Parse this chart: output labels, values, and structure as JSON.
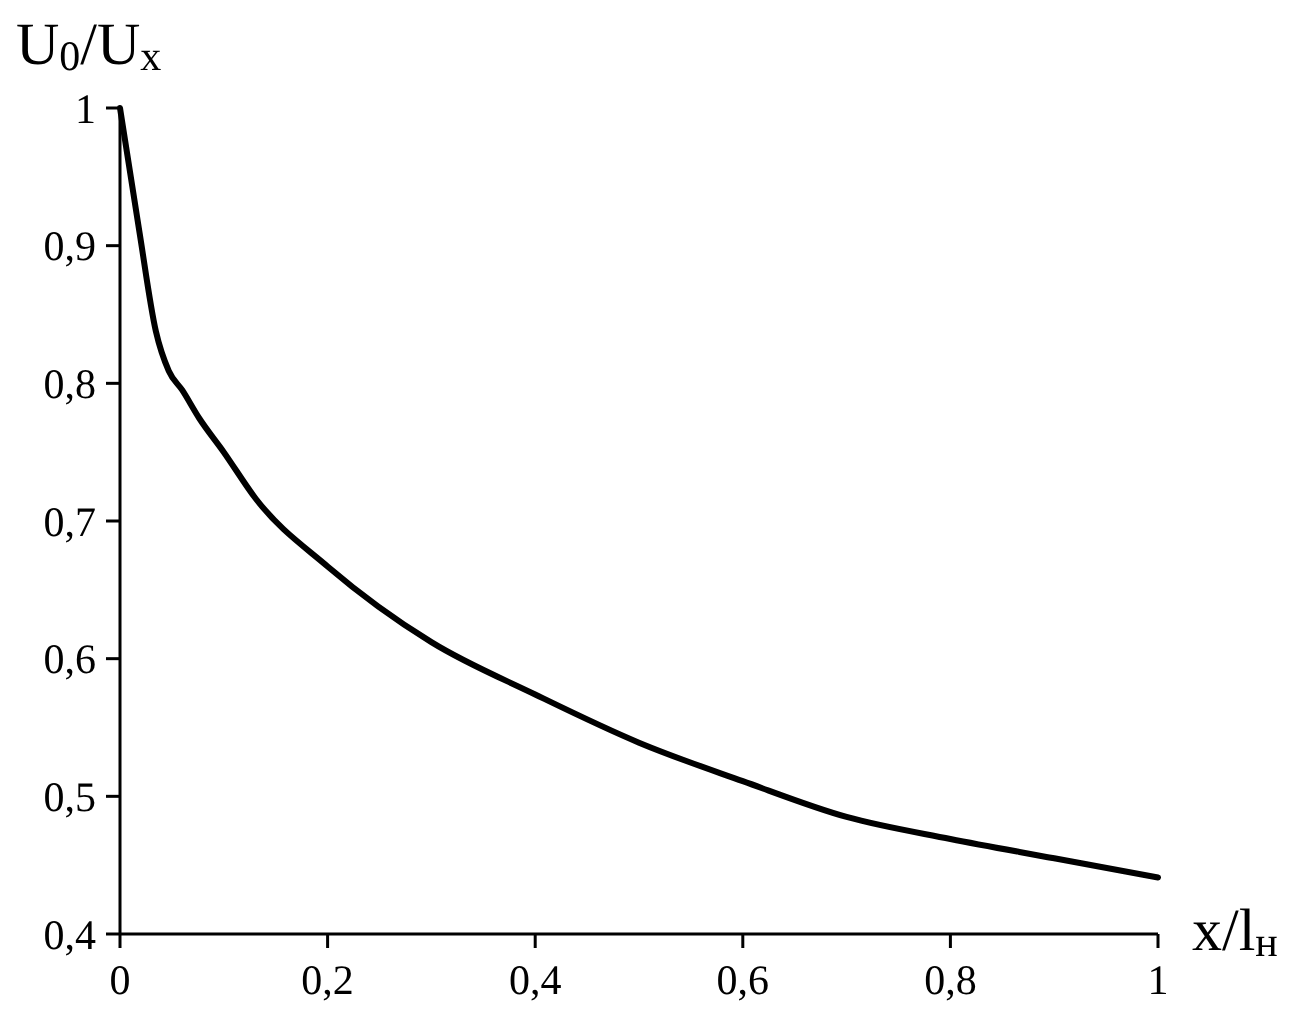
{
  "chart_data": {
    "type": "line",
    "ylabel": "U$_{0}$/U$_{x}$",
    "xlabel": "x/l$_{н}$",
    "x": [
      0,
      0.0185,
      0.0345,
      0.047,
      0.06,
      0.076,
      0.1,
      0.131,
      0.2,
      0.3,
      0.4,
      0.5,
      0.6,
      0.7,
      0.8,
      0.9,
      1
    ],
    "series": [
      {
        "color": "#000000",
        "values": [
          1,
          0.911,
          0.838,
          0.809,
          0.795,
          0.775,
          0.75,
          0.716,
          0.667,
          0.612,
          0.574,
          0.539,
          0.511,
          0.485,
          0.469,
          0.455,
          0.441
        ]
      }
    ],
    "xlim": [
      0,
      1
    ],
    "ylim": [
      0.4,
      1
    ],
    "xticks": [
      0,
      {
        "value": 0.2,
        "label": "0,2"
      },
      {
        "value": 0.4,
        "label": "0,4"
      },
      {
        "value": 0.6,
        "label": "0,6"
      },
      {
        "value": 0.8,
        "label": "0,8"
      },
      1
    ],
    "yticks": [
      {
        "value": 0.4,
        "label": "0,4"
      },
      {
        "value": 0.5,
        "label": "0,5"
      },
      {
        "value": 0.6,
        "label": "0,6"
      },
      {
        "value": 0.7,
        "label": "0,7"
      },
      {
        "value": 0.8,
        "label": "0,8"
      },
      {
        "value": 0.9,
        "label": "0,9"
      },
      1
    ],
    "grid": false,
    "marker": "none",
    "line_style": "solid"
  }
}
